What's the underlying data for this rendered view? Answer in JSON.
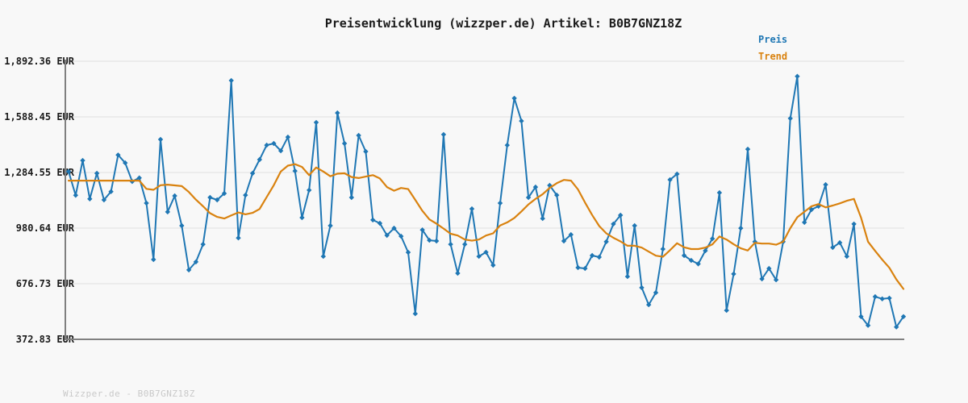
{
  "title": "Preisentwicklung (wizzper.de) Artikel: B0B7GNZ18Z",
  "watermark": "Wizzper.de - B0B7GNZ18Z",
  "legend": [
    {
      "label": "Preis",
      "color": "#1f77b4"
    },
    {
      "label": "Trend",
      "color": "#d9820f"
    }
  ],
  "colors": {
    "background": "#f8f8f8",
    "grid": "#e7e7e7",
    "axis": "#808080",
    "price": "#1f77b4",
    "trend": "#d9820f"
  },
  "chart_data": {
    "type": "line",
    "title": "Preisentwicklung (wizzper.de) Artikel: B0B7GNZ18Z",
    "xlabel": "",
    "ylabel": "",
    "ylim": [
      372.83,
      1892.36
    ],
    "grid": true,
    "legend_position": "top-right",
    "x_axis": {
      "tick_labels_visible": false,
      "num_points": 119
    },
    "y_axis": {
      "tick_labels": [
        "1,892.36 EUR",
        "1,588.45 EUR",
        "1,284.55 EUR",
        "980.64 EUR",
        "676.73 EUR",
        "372.83 EUR"
      ],
      "tick_values": [
        1892.36,
        1588.45,
        1284.55,
        980.64,
        676.73,
        372.83
      ],
      "unit": "EUR"
    },
    "series": [
      {
        "name": "Preis",
        "color": "#1f77b4",
        "marker": "diamond",
        "line_width": 2,
        "values": [
          1290,
          1160,
          1350,
          1140,
          1280,
          1135,
          1180,
          1380,
          1337,
          1235,
          1255,
          1117,
          809,
          1465,
          1069,
          1157,
          994,
          752,
          796,
          892,
          1148,
          1135,
          1170,
          1787,
          927,
          1161,
          1280,
          1355,
          1434,
          1443,
          1403,
          1478,
          1293,
          1038,
          1188,
          1558,
          826,
          994,
          1610,
          1443,
          1148,
          1487,
          1399,
          1025,
          1007,
          941,
          980,
          936,
          848,
          513,
          971,
          914,
          910,
          1492,
          892,
          734,
          892,
          1086,
          826,
          849,
          778,
          1117,
          1434,
          1690,
          1566,
          1148,
          1205,
          1033,
          1214,
          1161,
          910,
          945,
          765,
          760,
          831,
          822,
          906,
          1003,
          1051,
          716,
          994,
          655,
          562,
          628,
          866,
          1245,
          1276,
          831,
          804,
          785,
          857,
          923,
          1174,
          531,
          730,
          980,
          1412,
          906,
          703,
          760,
          698,
          906,
          1580,
          1810,
          1012,
          1082,
          1100,
          1218,
          875,
          901,
          826,
          1003,
          497,
          449,
          606,
          594,
          598,
          440,
          497
        ]
      },
      {
        "name": "Trend",
        "color": "#d9820f",
        "marker": "none",
        "line_width": 2.2,
        "values": [
          1240,
          1240,
          1240,
          1240,
          1240,
          1240,
          1240,
          1240,
          1240,
          1240,
          1240,
          1195,
          1190,
          1215,
          1218,
          1214,
          1210,
          1178,
          1136,
          1100,
          1062,
          1042,
          1033,
          1050,
          1066,
          1056,
          1064,
          1085,
          1150,
          1215,
          1290,
          1322,
          1330,
          1315,
          1270,
          1312,
          1290,
          1264,
          1278,
          1280,
          1260,
          1254,
          1262,
          1270,
          1252,
          1205,
          1185,
          1200,
          1194,
          1135,
          1075,
          1028,
          1005,
          978,
          950,
          940,
          918,
          912,
          918,
          940,
          952,
          995,
          1012,
          1036,
          1072,
          1110,
          1140,
          1166,
          1200,
          1226,
          1244,
          1240,
          1192,
          1120,
          1052,
          992,
          952,
          928,
          908,
          884,
          884,
          874,
          852,
          830,
          824,
          860,
          898,
          876,
          866,
          866,
          874,
          892,
          935,
          918,
          892,
          870,
          858,
          900,
          896,
          896,
          890,
          906,
          980,
          1040,
          1070,
          1100,
          1112,
          1094,
          1104,
          1116,
          1130,
          1140,
          1038,
          906,
          856,
          808,
          764,
          700,
          648
        ]
      }
    ]
  }
}
